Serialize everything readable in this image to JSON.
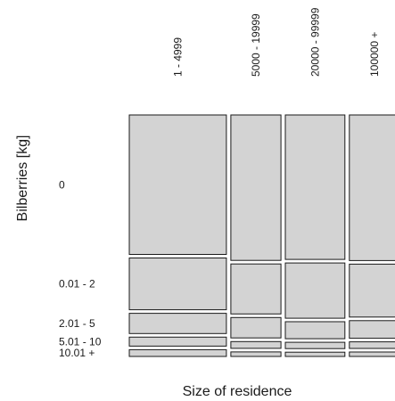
{
  "chart_data": {
    "type": "mosaic",
    "xlabel": "Size of residence",
    "ylabel": "Bilberries [kg]",
    "x_categories": [
      "1 - 4999",
      "5000 - 19999",
      "20000 - 99999",
      "100000 +"
    ],
    "y_categories": [
      "0",
      "0.01 - 2",
      "2.01 - 5",
      "5.01 - 10",
      "10.01 +"
    ],
    "x_proportions": [
      0.378,
      0.195,
      0.232,
      0.195
    ],
    "conditional_proportions": [
      [
        0.62,
        0.23,
        0.09,
        0.04,
        0.03
      ],
      [
        0.64,
        0.22,
        0.09,
        0.03,
        0.02
      ],
      [
        0.68,
        0.26,
        0.08,
        0.03,
        0.02
      ],
      [
        0.66,
        0.24,
        0.08,
        0.03,
        0.02
      ]
    ]
  }
}
